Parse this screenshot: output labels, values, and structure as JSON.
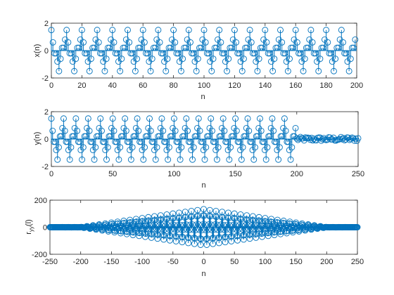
{
  "colors": {
    "series": "#0072BD",
    "axis": "#262626",
    "background": "#ffffff"
  },
  "chart_data": [
    {
      "type": "stem",
      "title": "",
      "xlabel": "n",
      "ylabel": "x(n)",
      "xlim": [
        0,
        200
      ],
      "ylim": [
        -2,
        2
      ],
      "xticks": [
        0,
        20,
        40,
        60,
        80,
        100,
        120,
        140,
        160,
        180,
        200
      ],
      "yticks": [
        -2,
        0,
        2
      ],
      "series": [
        {
          "description": "periodic sequence, period 10, n = 0..199",
          "x_start": 0,
          "x_end": 199,
          "period": 10,
          "period_values": [
            1.5,
            0.6,
            -0.2,
            -0.2,
            -0.8,
            -1.5,
            -0.6,
            0.2,
            0.2,
            0.8
          ]
        }
      ]
    },
    {
      "type": "stem",
      "title": "",
      "xlabel": "n",
      "ylabel": "y(n)",
      "xlim": [
        0,
        250
      ],
      "ylim": [
        -2,
        2
      ],
      "xticks": [
        0,
        50,
        100,
        150,
        200,
        250
      ],
      "yticks": [
        -2,
        0,
        2
      ],
      "series": [
        {
          "description": "periodic signal for n = 0..199, small noise for n = 200..250",
          "x_start": 0,
          "x_end": 250,
          "period": 10,
          "period_values": [
            1.5,
            0.6,
            -0.2,
            -0.2,
            -0.8,
            -1.5,
            -0.6,
            0.2,
            0.2,
            0.8
          ],
          "periodic_end": 199,
          "noise_amplitude": 0.15
        }
      ]
    },
    {
      "type": "stem",
      "title": "",
      "xlabel": "n",
      "ylabel": "r",
      "ylabel_subscript": "yy",
      "ylabel_suffix": "(l)",
      "xlim": [
        -250,
        250
      ],
      "ylim": [
        -200,
        200
      ],
      "xticks": [
        -250,
        -200,
        -150,
        -100,
        -50,
        0,
        50,
        100,
        150,
        200,
        250
      ],
      "yticks": [
        -200,
        0,
        200
      ],
      "series": [
        {
          "description": "autocorrelation of y, lags -250..250, envelope peaks near 150 at lag 0",
          "x_start": -250,
          "x_end": 250,
          "peak": 150
        }
      ]
    }
  ]
}
